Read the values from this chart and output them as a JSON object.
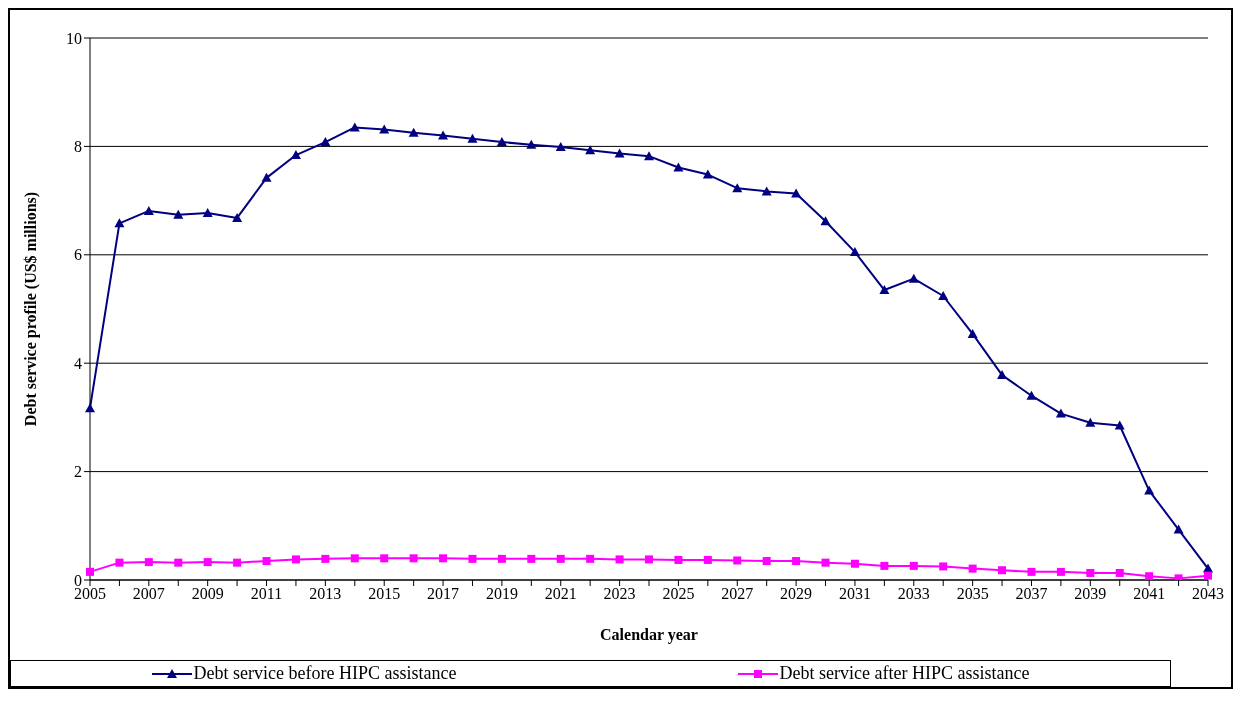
{
  "chart_data": {
    "type": "line",
    "xlabel": "Calendar year",
    "ylabel": "Debt service profile (US$ millions)",
    "categories": [
      "2005",
      null,
      "2007",
      null,
      "2009",
      null,
      "2011",
      null,
      "2013",
      null,
      "2015",
      null,
      "2017",
      null,
      "2019",
      null,
      "2021",
      null,
      "2023",
      null,
      "2025",
      null,
      "2027",
      null,
      "2029",
      null,
      "2031",
      null,
      "2033",
      null,
      "2035",
      null,
      "2037",
      null,
      "2039",
      null,
      "2041",
      null,
      "2043"
    ],
    "series": [
      {
        "name": "Debt service before HIPC assistance",
        "color": "#000080",
        "marker": "triangle",
        "values": [
          3.17,
          6.58,
          6.81,
          6.74,
          6.77,
          6.68,
          7.42,
          7.84,
          8.08,
          8.35,
          8.31,
          8.25,
          8.2,
          8.14,
          8.08,
          8.03,
          7.99,
          7.93,
          7.87,
          7.82,
          7.61,
          7.48,
          7.23,
          7.17,
          7.13,
          6.62,
          6.05,
          5.35,
          5.56,
          5.24,
          4.54,
          3.78,
          3.4,
          3.07,
          2.9,
          2.85,
          1.65,
          0.93,
          0.21
        ]
      },
      {
        "name": "Debt service after HIPC assistance",
        "color": "#ff00ff",
        "marker": "square",
        "values": [
          0.15,
          0.32,
          0.33,
          0.32,
          0.33,
          0.32,
          0.35,
          0.38,
          0.39,
          0.4,
          0.4,
          0.4,
          0.4,
          0.39,
          0.39,
          0.39,
          0.39,
          0.39,
          0.38,
          0.38,
          0.37,
          0.37,
          0.36,
          0.35,
          0.35,
          0.32,
          0.3,
          0.26,
          0.26,
          0.25,
          0.21,
          0.18,
          0.15,
          0.15,
          0.13,
          0.13,
          0.07,
          0.03,
          0.08
        ]
      }
    ],
    "ylim": [
      0,
      10
    ],
    "yticks": [
      0,
      2,
      4,
      6,
      8,
      10
    ],
    "grid": "y",
    "legend": "bottom",
    "line_style": "solid"
  }
}
